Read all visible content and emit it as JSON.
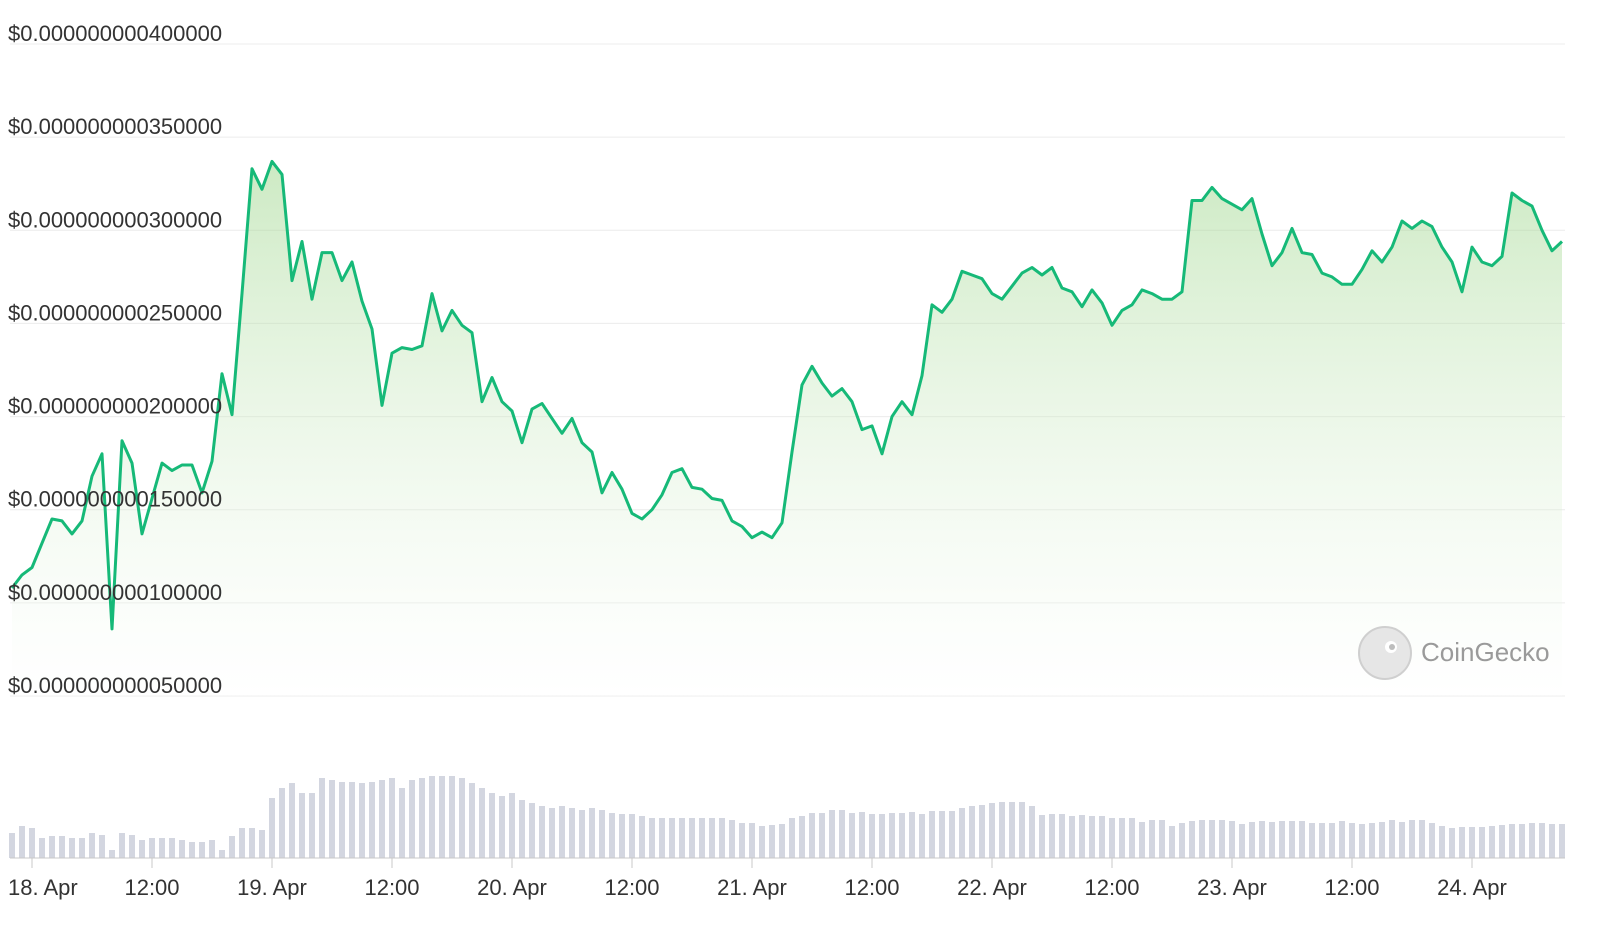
{
  "chart_data": {
    "type": "line",
    "color": "#16b978",
    "volume_color": "#d3d6e0",
    "watermark": "CoinGecko",
    "ylim": [
      5e-11,
      4e-10
    ],
    "yticks": [
      {
        "value": 5e-11,
        "label": "$0.000000000050000"
      },
      {
        "value": 1e-10,
        "label": "$0.000000000100000"
      },
      {
        "value": 1.5e-10,
        "label": "$0.000000000150000"
      },
      {
        "value": 2e-10,
        "label": "$0.000000000200000"
      },
      {
        "value": 2.5e-10,
        "label": "$0.000000000250000"
      },
      {
        "value": 3e-10,
        "label": "$0.000000000300000"
      },
      {
        "value": 3.5e-10,
        "label": "$0.000000000350000"
      },
      {
        "value": 4e-10,
        "label": "$0.000000000400000"
      }
    ],
    "xlim": [
      -2.2,
      153.3
    ],
    "xticks": [
      {
        "value": 0,
        "label": "18. Apr"
      },
      {
        "value": 12,
        "label": "12:00"
      },
      {
        "value": 24,
        "label": "19. Apr"
      },
      {
        "value": 36,
        "label": "12:00"
      },
      {
        "value": 48,
        "label": "20. Apr"
      },
      {
        "value": 60,
        "label": "12:00"
      },
      {
        "value": 72,
        "label": "21. Apr"
      },
      {
        "value": 84,
        "label": "12:00"
      },
      {
        "value": 96,
        "label": "22. Apr"
      },
      {
        "value": 108,
        "label": "12:00"
      },
      {
        "value": 120,
        "label": "23. Apr"
      },
      {
        "value": 132,
        "label": "12:00"
      },
      {
        "value": 144,
        "label": "24. Apr"
      }
    ],
    "x": [
      -2,
      -1,
      0,
      1,
      2,
      3,
      4,
      5,
      6,
      7,
      8,
      9,
      10,
      11,
      12,
      13,
      14,
      15,
      16,
      17,
      18,
      19,
      20,
      21,
      22,
      23,
      24,
      25,
      26,
      27,
      28,
      29,
      30,
      31,
      32,
      33,
      34,
      35,
      36,
      37,
      38,
      39,
      40,
      41,
      42,
      43,
      44,
      45,
      46,
      47,
      48,
      49,
      50,
      51,
      52,
      53,
      54,
      55,
      56,
      57,
      58,
      59,
      60,
      61,
      62,
      63,
      64,
      65,
      66,
      67,
      68,
      69,
      70,
      71,
      72,
      73,
      74,
      75,
      76,
      77,
      78,
      79,
      80,
      81,
      82,
      83,
      84,
      85,
      86,
      87,
      88,
      89,
      90,
      91,
      92,
      93,
      94,
      95,
      96,
      97,
      98,
      99,
      100,
      101,
      102,
      103,
      104,
      105,
      106,
      107,
      108,
      109,
      110,
      111,
      112,
      113,
      114,
      115,
      116,
      117,
      118,
      119,
      120,
      121,
      122,
      123,
      124,
      125,
      126,
      127,
      128,
      129,
      130,
      131,
      132,
      133,
      134,
      135,
      136,
      137,
      138,
      139,
      140,
      141,
      142,
      143,
      144,
      145,
      146,
      147,
      148,
      149,
      150,
      151,
      152,
      153
    ],
    "values": [
      1.08e-10,
      1.15e-10,
      1.19e-10,
      1.32e-10,
      1.45e-10,
      1.44e-10,
      1.37e-10,
      1.44e-10,
      1.68e-10,
      1.8e-10,
      8.6e-11,
      1.87e-10,
      1.75e-10,
      1.37e-10,
      1.56e-10,
      1.75e-10,
      1.71e-10,
      1.74e-10,
      1.74e-10,
      1.59e-10,
      1.76e-10,
      2.23e-10,
      2.01e-10,
      2.66e-10,
      3.33e-10,
      3.22e-10,
      3.37e-10,
      3.3e-10,
      2.73e-10,
      2.94e-10,
      2.63e-10,
      2.88e-10,
      2.88e-10,
      2.73e-10,
      2.83e-10,
      2.62e-10,
      2.47e-10,
      2.06e-10,
      2.34e-10,
      2.37e-10,
      2.36e-10,
      2.38e-10,
      2.66e-10,
      2.46e-10,
      2.57e-10,
      2.49e-10,
      2.45e-10,
      2.08e-10,
      2.21e-10,
      2.08e-10,
      2.03e-10,
      1.86e-10,
      2.04e-10,
      2.07e-10,
      1.99e-10,
      1.91e-10,
      1.99e-10,
      1.86e-10,
      1.81e-10,
      1.59e-10,
      1.7e-10,
      1.61e-10,
      1.48e-10,
      1.45e-10,
      1.5e-10,
      1.58e-10,
      1.7e-10,
      1.72e-10,
      1.62e-10,
      1.61e-10,
      1.56e-10,
      1.55e-10,
      1.44e-10,
      1.41e-10,
      1.35e-10,
      1.38e-10,
      1.35e-10,
      1.43e-10,
      1.81e-10,
      2.17e-10,
      2.27e-10,
      2.18e-10,
      2.11e-10,
      2.15e-10,
      2.08e-10,
      1.93e-10,
      1.95e-10,
      1.8e-10,
      2e-10,
      2.08e-10,
      2.01e-10,
      2.22e-10,
      2.6e-10,
      2.56e-10,
      2.63e-10,
      2.78e-10,
      2.76e-10,
      2.74e-10,
      2.66e-10,
      2.63e-10,
      2.7e-10,
      2.77e-10,
      2.8e-10,
      2.76e-10,
      2.8e-10,
      2.69e-10,
      2.67e-10,
      2.59e-10,
      2.68e-10,
      2.61e-10,
      2.49e-10,
      2.57e-10,
      2.6e-10,
      2.68e-10,
      2.66e-10,
      2.63e-10,
      2.63e-10,
      2.67e-10,
      3.16e-10,
      3.16e-10,
      3.23e-10,
      3.17e-10,
      3.14e-10,
      3.11e-10,
      3.17e-10,
      2.98e-10,
      2.81e-10,
      2.88e-10,
      3.01e-10,
      2.88e-10,
      2.87e-10,
      2.77e-10,
      2.75e-10,
      2.71e-10,
      2.71e-10,
      2.79e-10,
      2.89e-10,
      2.83e-10,
      2.91e-10,
      3.05e-10,
      3.01e-10,
      3.05e-10,
      3.02e-10,
      2.91e-10,
      2.83e-10,
      2.67e-10,
      2.91e-10,
      2.83e-10,
      2.81e-10,
      2.86e-10,
      3.2e-10,
      3.16e-10,
      3.13e-10,
      3e-10,
      2.89e-10,
      2.94e-10
    ],
    "volume_ylim": [
      0,
      100
    ],
    "volume": [
      25,
      32,
      30,
      20,
      22,
      22,
      20,
      20,
      25,
      23,
      8,
      25,
      23,
      18,
      20,
      20,
      20,
      18,
      16,
      16,
      18,
      8,
      22,
      30,
      30,
      28,
      60,
      70,
      75,
      65,
      65,
      80,
      78,
      76,
      76,
      75,
      76,
      78,
      80,
      70,
      78,
      80,
      82,
      82,
      82,
      80,
      75,
      70,
      65,
      62,
      65,
      58,
      55,
      52,
      50,
      52,
      50,
      48,
      50,
      48,
      45,
      44,
      44,
      42,
      40,
      40,
      40,
      40,
      40,
      40,
      40,
      40,
      38,
      35,
      35,
      32,
      33,
      34,
      40,
      42,
      45,
      45,
      48,
      48,
      45,
      46,
      44,
      44,
      45,
      45,
      46,
      44,
      47,
      47,
      47,
      50,
      52,
      53,
      55,
      56,
      56,
      56,
      52,
      43,
      44,
      44,
      42,
      43,
      42,
      42,
      40,
      40,
      40,
      36,
      38,
      38,
      32,
      35,
      37,
      38,
      38,
      38,
      37,
      34,
      36,
      37,
      36,
      37,
      37,
      37,
      35,
      35,
      35,
      37,
      35,
      34,
      35,
      36,
      38,
      36,
      38,
      38,
      35,
      32,
      30,
      31,
      31,
      31,
      32,
      33,
      34,
      34,
      35,
      35,
      34,
      34
    ]
  }
}
